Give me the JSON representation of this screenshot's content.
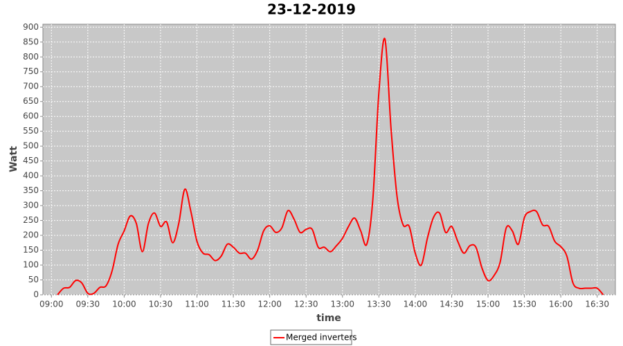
{
  "chart_data": {
    "type": "line",
    "title": "23-12-2019",
    "x_label": "time",
    "y_label": "Watt",
    "x": [
      "09:05",
      "09:10",
      "09:15",
      "09:20",
      "09:25",
      "09:30",
      "09:35",
      "09:40",
      "09:45",
      "09:50",
      "09:55",
      "10:00",
      "10:05",
      "10:10",
      "10:15",
      "10:20",
      "10:25",
      "10:30",
      "10:35",
      "10:40",
      "10:45",
      "10:50",
      "10:55",
      "11:00",
      "11:05",
      "11:10",
      "11:15",
      "11:20",
      "11:25",
      "11:30",
      "11:35",
      "11:40",
      "11:45",
      "11:50",
      "11:55",
      "12:00",
      "12:05",
      "12:10",
      "12:15",
      "12:20",
      "12:25",
      "12:30",
      "12:35",
      "12:40",
      "12:45",
      "12:50",
      "12:55",
      "13:00",
      "13:05",
      "13:10",
      "13:15",
      "13:20",
      "13:25",
      "13:30",
      "13:35",
      "13:40",
      "13:45",
      "13:50",
      "13:55",
      "14:00",
      "14:05",
      "14:10",
      "14:15",
      "14:20",
      "14:25",
      "14:30",
      "14:35",
      "14:40",
      "14:45",
      "14:50",
      "14:55",
      "15:00",
      "15:05",
      "15:10",
      "15:15",
      "15:20",
      "15:25",
      "15:30",
      "15:35",
      "15:40",
      "15:45",
      "15:50",
      "15:55",
      "16:00",
      "16:05",
      "16:10",
      "16:15",
      "16:20",
      "16:25",
      "16:30",
      "16:35"
    ],
    "series": [
      {
        "name": "Merged inverters",
        "color": "#ff0000",
        "values": [
          0,
          22,
          25,
          48,
          40,
          5,
          5,
          25,
          30,
          80,
          170,
          215,
          265,
          240,
          145,
          240,
          275,
          230,
          245,
          175,
          240,
          355,
          280,
          180,
          140,
          135,
          115,
          130,
          170,
          160,
          140,
          140,
          120,
          150,
          215,
          232,
          210,
          225,
          283,
          255,
          210,
          220,
          220,
          160,
          160,
          145,
          165,
          190,
          230,
          258,
          215,
          170,
          320,
          680,
          860,
          560,
          330,
          235,
          230,
          140,
          100,
          190,
          260,
          275,
          210,
          230,
          180,
          140,
          165,
          160,
          90,
          48,
          65,
          110,
          225,
          215,
          170,
          260,
          280,
          280,
          235,
          230,
          180,
          162,
          130,
          40,
          22,
          22,
          22,
          22,
          0
        ]
      }
    ],
    "xlim": [
      "08:53",
      "16:45"
    ],
    "xticks": [
      "09:00",
      "09:30",
      "10:00",
      "10:30",
      "11:00",
      "11:30",
      "12:00",
      "12:30",
      "13:00",
      "13:30",
      "14:00",
      "14:30",
      "15:00",
      "15:30",
      "16:00",
      "16:30"
    ],
    "ylim": [
      0,
      910
    ],
    "yticks": [
      0,
      50,
      100,
      150,
      200,
      250,
      300,
      350,
      400,
      450,
      500,
      550,
      600,
      650,
      700,
      750,
      800,
      850,
      900
    ],
    "grid": true,
    "legend": "bottom"
  }
}
